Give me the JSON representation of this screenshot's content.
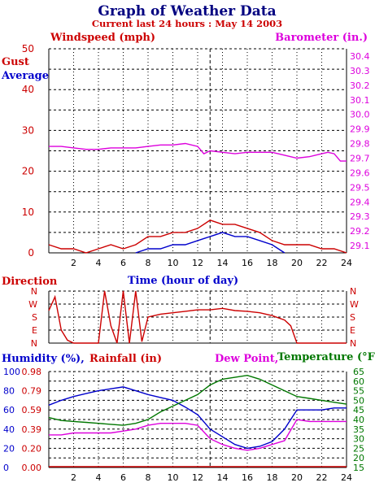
{
  "header": {
    "title": "Graph of Weather Data",
    "subtitle": "Current last 24 hours : May 14 2003"
  },
  "colors": {
    "title": "#000080",
    "red": "#cc0000",
    "blue": "#0000cc",
    "magenta": "#dd00dd",
    "green": "#007700",
    "grid": "#000000"
  },
  "chart_data": [
    {
      "type": "line",
      "name": "wind-barometer",
      "labels": {
        "windspeed": "Windspeed (mph)",
        "barometer": "Barometer (in.)",
        "gust": "Gust",
        "average": "Average"
      },
      "xlabel": "Time (hour of day)",
      "x_ticks": [
        "2",
        "4",
        "6",
        "8",
        "10",
        "12",
        "14",
        "16",
        "18",
        "20",
        "22",
        "24"
      ],
      "xlim": [
        0,
        24
      ],
      "left_ticks": [
        "0",
        "10",
        "20",
        "30",
        "40",
        "50"
      ],
      "left_ylim": [
        0,
        50
      ],
      "right_ticks": [
        "29.1",
        "29.2",
        "29.3",
        "29.4",
        "29.5",
        "29.6",
        "29.7",
        "29.8",
        "29.9",
        "30.0",
        "30.1",
        "30.2",
        "30.3",
        "30.4"
      ],
      "right_ylim": [
        29.05,
        30.45
      ],
      "grid": true,
      "now_marker_hour": 13,
      "series": [
        {
          "name": "Barometer",
          "axis": "right",
          "color": "#dd00dd",
          "x": [
            0,
            1,
            2,
            3,
            4,
            5,
            6,
            7,
            8,
            9,
            10,
            11,
            12,
            12.5,
            13,
            14,
            15,
            16,
            17,
            18,
            19,
            20,
            21,
            22,
            22.5,
            23,
            23.5,
            24
          ],
          "y": [
            29.78,
            29.78,
            29.77,
            29.76,
            29.76,
            29.77,
            29.77,
            29.77,
            29.78,
            29.79,
            29.79,
            29.8,
            29.78,
            29.73,
            29.75,
            29.74,
            29.73,
            29.74,
            29.74,
            29.74,
            29.72,
            29.7,
            29.71,
            29.73,
            29.74,
            29.73,
            29.68,
            29.68
          ]
        },
        {
          "name": "Gust",
          "axis": "left",
          "color": "#cc0000",
          "x": [
            0,
            1,
            2,
            3,
            4,
            5,
            6,
            7,
            8,
            9,
            10,
            11,
            12,
            13,
            14,
            15,
            16,
            17,
            18,
            19,
            20,
            21,
            22,
            23,
            24
          ],
          "y": [
            2,
            1,
            1,
            0,
            1,
            2,
            1,
            2,
            4,
            4,
            5,
            5,
            6,
            8,
            7,
            7,
            6,
            5,
            3,
            2,
            2,
            2,
            1,
            1,
            0
          ]
        },
        {
          "name": "Average",
          "axis": "left",
          "color": "#0000cc",
          "x": [
            7,
            8,
            9,
            10,
            11,
            12,
            13,
            14,
            15,
            16,
            17,
            18,
            19
          ],
          "y": [
            0,
            1,
            1,
            2,
            2,
            3,
            4,
            5,
            4,
            4,
            3,
            2,
            0
          ]
        }
      ]
    },
    {
      "type": "line",
      "name": "direction",
      "ylabel": "Direction",
      "xlabel": "Time (hour of day)",
      "y_ticks": [
        "N",
        "W",
        "S",
        "E",
        "N"
      ],
      "xlim": [
        0,
        24
      ],
      "grid": true,
      "series": [
        {
          "name": "Direction",
          "color": "#cc0000",
          "x": [
            0,
            0.5,
            1,
            1.5,
            2,
            3,
            4,
            4.5,
            5,
            5.5,
            6,
            6.5,
            7,
            7.5,
            8,
            9,
            10,
            11,
            12,
            13,
            14,
            15,
            16,
            17,
            18,
            19,
            19.5,
            20,
            21,
            22,
            23,
            24
          ],
          "y": [
            225,
            320,
            90,
            20,
            0,
            0,
            0,
            360,
            120,
            0,
            360,
            0,
            360,
            10,
            180,
            200,
            210,
            220,
            230,
            230,
            240,
            225,
            220,
            210,
            190,
            160,
            120,
            0,
            0,
            0,
            0,
            0
          ]
        }
      ]
    },
    {
      "type": "line",
      "name": "humidity-temperature",
      "labels": {
        "humidity": "Humidity (%),",
        "rainfall": "Rainfall (in)",
        "dewpoint": "Dew Point,",
        "temperature": "Temperature (°F)"
      },
      "x_ticks": [
        "2",
        "4",
        "6",
        "8",
        "10",
        "12",
        "14",
        "16",
        "18",
        "20",
        "22",
        "24"
      ],
      "xlim": [
        0,
        24
      ],
      "humidity_ticks": [
        "0",
        "20",
        "40",
        "60",
        "80",
        "100"
      ],
      "humidity_ylim": [
        0,
        100
      ],
      "rain_ticks": [
        "0.00",
        "0.20",
        "0.39",
        "0.59",
        "0.79",
        "0.98"
      ],
      "temp_ticks": [
        "15",
        "20",
        "25",
        "30",
        "35",
        "40",
        "45",
        "50",
        "55",
        "60",
        "65"
      ],
      "temp_ylim": [
        15,
        65
      ],
      "grid": true,
      "series": [
        {
          "name": "Humidity",
          "axis": "left",
          "color": "#0000cc",
          "x": [
            0,
            1,
            2,
            3,
            4,
            5,
            6,
            7,
            8,
            9,
            10,
            11,
            12,
            13,
            14,
            15,
            16,
            17,
            18,
            19,
            20,
            21,
            22,
            23,
            24
          ],
          "y": [
            65,
            70,
            74,
            77,
            80,
            82,
            84,
            80,
            76,
            73,
            70,
            63,
            55,
            40,
            32,
            24,
            20,
            22,
            27,
            40,
            60,
            60,
            60,
            62,
            62
          ]
        },
        {
          "name": "Temperature",
          "axis": "right",
          "color": "#007700",
          "x": [
            0,
            1,
            2,
            3,
            4,
            5,
            6,
            7,
            8,
            9,
            10,
            11,
            12,
            13,
            14,
            15,
            16,
            17,
            18,
            19,
            20,
            21,
            22,
            23,
            24
          ],
          "y": [
            41,
            39.5,
            39,
            38.5,
            38,
            37.5,
            37,
            38,
            40,
            44,
            47,
            50,
            53,
            58,
            61,
            62,
            63,
            61,
            58,
            55,
            52,
            51,
            50,
            49,
            48
          ]
        },
        {
          "name": "Dew Point",
          "axis": "right",
          "color": "#dd00dd",
          "x": [
            0,
            1,
            2,
            3,
            4,
            5,
            6,
            7,
            8,
            9,
            10,
            11,
            12,
            13,
            14,
            15,
            16,
            17,
            18,
            19,
            20,
            21,
            22,
            23,
            24
          ],
          "y": [
            32,
            32,
            33,
            33,
            33,
            33,
            34,
            35,
            37,
            38,
            38,
            38,
            37,
            30,
            27,
            25,
            24,
            25,
            27,
            29,
            40,
            39,
            39,
            39,
            39
          ]
        }
      ]
    }
  ]
}
